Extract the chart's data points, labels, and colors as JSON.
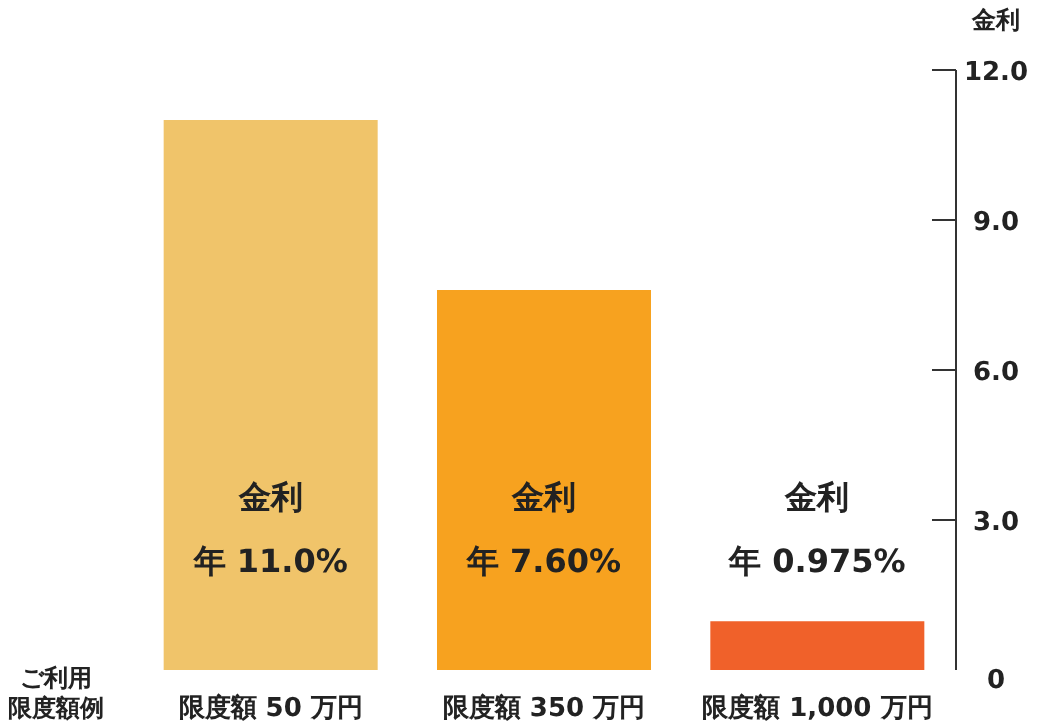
{
  "chart_data": {
    "type": "bar",
    "ylabel": "金利",
    "xlabel": "ご利用限度額例",
    "annotations": [
      "金利",
      "金利",
      "金利"
    ],
    "categories": [
      "限度額 50 万円",
      "限度額 350 万円",
      "限度額 1,000 万円"
    ],
    "values": [
      11.0,
      7.6,
      0.975
    ],
    "colors": [
      "#f0c46a",
      "#f7a21f",
      "#f0612a"
    ],
    "value_labels": [
      "年 11.0%",
      "年 7.60%",
      "年 0.975%"
    ],
    "ylim": [
      0,
      12
    ],
    "yticks": [
      {
        "value": 0,
        "label": "0"
      },
      {
        "value": 3,
        "label": "3.0"
      },
      {
        "value": 6,
        "label": "6.0"
      },
      {
        "value": 9,
        "label": "9.0"
      },
      {
        "value": 12,
        "label": "12.0"
      }
    ],
    "grid": false
  }
}
